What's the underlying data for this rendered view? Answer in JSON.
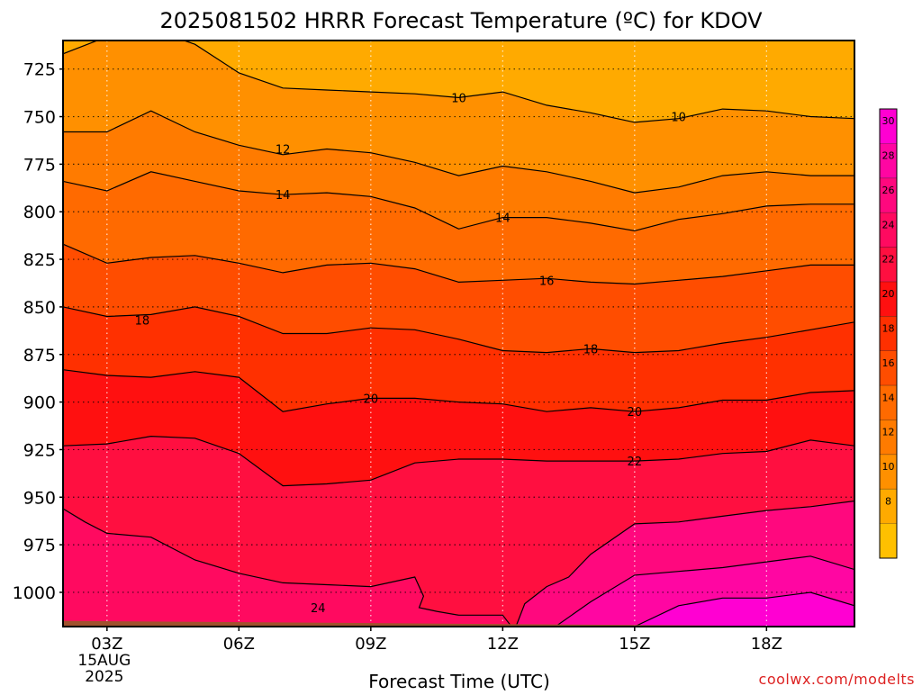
{
  "chart_data": {
    "type": "heatmap",
    "title": "2025081502 HRRR Forecast Temperature (ºC) for KDOV",
    "xlabel": "Forecast Time (UTC)",
    "ylabel": "",
    "x_range_hours": [
      2,
      20
    ],
    "y_range_hpa": [
      1018,
      710
    ],
    "x_ticks": [
      {
        "hour": 3,
        "label": "03Z",
        "sub": [
          "15AUG",
          "2025"
        ]
      },
      {
        "hour": 6,
        "label": "06Z"
      },
      {
        "hour": 9,
        "label": "09Z"
      },
      {
        "hour": 12,
        "label": "12Z"
      },
      {
        "hour": 15,
        "label": "15Z"
      },
      {
        "hour": 18,
        "label": "18Z"
      }
    ],
    "y_ticks": [
      725,
      750,
      775,
      800,
      825,
      850,
      875,
      900,
      925,
      950,
      975,
      1000
    ],
    "colorbar": {
      "levels": [
        6,
        8,
        10,
        12,
        14,
        16,
        18,
        20,
        22,
        24,
        26,
        28,
        30,
        32
      ],
      "labels": [
        8,
        10,
        12,
        14,
        16,
        18,
        20,
        22,
        24,
        26,
        28,
        30
      ],
      "colors": [
        "#ffc000",
        "#ffaa00",
        "#ff9000",
        "#ff7b00",
        "#ff6a00",
        "#ff4d00",
        "#ff3000",
        "#ff1010",
        "#ff0f40",
        "#ff0a60",
        "#ff087e",
        "#ff06a2",
        "#ff00d2"
      ]
    },
    "contours": [
      {
        "value": 10,
        "label": "10",
        "hours": [
          2,
          3,
          4,
          5,
          6,
          7,
          8,
          9,
          10,
          11,
          12,
          13,
          14,
          15,
          16,
          17,
          18,
          19,
          20
        ],
        "pressure": [
          717,
          708,
          704,
          712,
          727,
          735,
          736,
          737,
          738,
          740,
          737,
          744,
          748,
          753,
          751,
          746,
          747,
          750,
          751
        ],
        "label_positions": [
          [
            11,
            740
          ],
          [
            16,
            750
          ]
        ]
      },
      {
        "value": 12,
        "label": "12",
        "hours": [
          2,
          3,
          4,
          5,
          6,
          7,
          8,
          9,
          10,
          11,
          12,
          13,
          14,
          15,
          16,
          17,
          18,
          19,
          20
        ],
        "pressure": [
          758,
          758,
          747,
          758,
          765,
          770,
          767,
          769,
          774,
          781,
          776,
          779,
          784,
          790,
          787,
          781,
          779,
          781,
          781
        ],
        "label_positions": [
          [
            7,
            767
          ]
        ]
      },
      {
        "value": 14,
        "label": "14",
        "hours": [
          2,
          3,
          4,
          5,
          6,
          7,
          8,
          9,
          10,
          11,
          12,
          13,
          14,
          15,
          16,
          17,
          18,
          19,
          20
        ],
        "pressure": [
          784,
          789,
          779,
          784,
          789,
          791,
          790,
          792,
          798,
          809,
          803,
          803,
          806,
          810,
          804,
          801,
          797,
          796,
          796
        ],
        "label_positions": [
          [
            7,
            791
          ],
          [
            12,
            803
          ]
        ]
      },
      {
        "value": 16,
        "label": "16",
        "hours": [
          2,
          3,
          4,
          5,
          6,
          7,
          8,
          9,
          10,
          11,
          12,
          13,
          14,
          15,
          16,
          17,
          18,
          19,
          20
        ],
        "pressure": [
          817,
          827,
          824,
          823,
          827,
          832,
          828,
          827,
          830,
          837,
          836,
          835,
          837,
          838,
          836,
          834,
          831,
          828,
          828
        ],
        "label_positions": [
          [
            13,
            836
          ]
        ]
      },
      {
        "value": 18,
        "label": "18",
        "hours": [
          2,
          3,
          4,
          5,
          6,
          7,
          8,
          9,
          10,
          11,
          12,
          13,
          14,
          15,
          16,
          17,
          18,
          19,
          20
        ],
        "pressure": [
          850,
          855,
          854,
          850,
          855,
          864,
          864,
          861,
          862,
          867,
          873,
          874,
          872,
          874,
          873,
          869,
          866,
          862,
          858
        ],
        "label_positions": [
          [
            3.8,
            857
          ],
          [
            14,
            872
          ]
        ]
      },
      {
        "value": 20,
        "label": "20",
        "hours": [
          2,
          3,
          4,
          5,
          6,
          7,
          8,
          9,
          10,
          11,
          12,
          13,
          14,
          15,
          16,
          17,
          18,
          19,
          20
        ],
        "pressure": [
          883,
          886,
          887,
          884,
          887,
          905,
          901,
          898,
          898,
          900,
          901,
          905,
          903,
          905,
          903,
          899,
          899,
          895,
          894
        ],
        "label_positions": [
          [
            9,
            898
          ],
          [
            15,
            905
          ]
        ]
      },
      {
        "value": 22,
        "label": "22",
        "hours": [
          2,
          3,
          4,
          5,
          6,
          7,
          8,
          9,
          10,
          11,
          12,
          13,
          14,
          15,
          16,
          17,
          18,
          19,
          20
        ],
        "pressure": [
          923,
          922,
          918,
          919,
          927,
          944,
          943,
          941,
          932,
          930,
          930,
          931,
          931,
          931,
          930,
          927,
          926,
          920,
          923
        ],
        "label_positions": [
          [
            15,
            931
          ]
        ]
      },
      {
        "value": 24,
        "label": "24",
        "hours": [
          2,
          2.5,
          3,
          4,
          5,
          6,
          7,
          8,
          9,
          10,
          10.2,
          10.1,
          10.3,
          10.5,
          11,
          12,
          12.2
        ],
        "pressure": [
          956,
          963,
          969,
          971,
          983,
          990,
          995,
          996,
          997,
          992,
          1002,
          1008,
          1009,
          1010,
          1012,
          1012,
          1018
        ],
        "label_positions": [
          [
            7.8,
            1008
          ]
        ]
      },
      {
        "value": 26,
        "label": "",
        "hours": [
          12.3,
          12.5,
          13,
          13.5,
          14,
          15,
          16,
          17,
          18,
          19,
          20
        ],
        "pressure": [
          1018,
          1006,
          997,
          992,
          980,
          964,
          963,
          960,
          957,
          955,
          952
        ],
        "label_positions": []
      },
      {
        "value": 28,
        "label": "",
        "hours": [
          13.2,
          14,
          15,
          16,
          17,
          18,
          19,
          20
        ],
        "pressure": [
          1018,
          1005,
          991,
          989,
          987,
          984,
          981,
          988
        ],
        "label_positions": []
      },
      {
        "value": 30,
        "label": "",
        "hours": [
          15,
          16,
          17,
          18,
          19,
          20
        ],
        "pressure": [
          1018,
          1007,
          1003,
          1003,
          1000,
          1007
        ],
        "label_positions": []
      }
    ],
    "ground": {
      "color": "#a0522d",
      "hours": [
        2,
        20
      ],
      "pressure": [
        1015,
        1018
      ]
    }
  },
  "credit": "coolwx.com/modelts"
}
